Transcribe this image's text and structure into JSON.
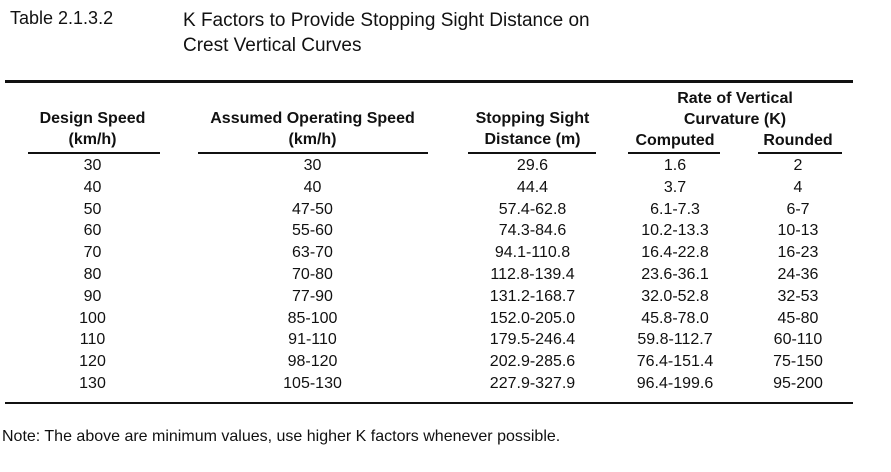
{
  "table_number": "Table 2.1.3.2",
  "title_line1": "K Factors to Provide Stopping Sight Distance on",
  "title_line2": "Crest Vertical Curves",
  "headers": {
    "design_speed": [
      "Design Speed",
      "(km/h)"
    ],
    "operating_speed": [
      "Assumed Operating Speed",
      "(km/h)"
    ],
    "ssd": [
      "Stopping Sight",
      "Distance (m)"
    ],
    "rate": [
      "Rate of Vertical",
      "Curvature (K)"
    ],
    "computed": "Computed",
    "rounded": "Rounded"
  },
  "rows": [
    [
      "30",
      "30",
      "29.6",
      "1.6",
      "2"
    ],
    [
      "40",
      "40",
      "44.4",
      "3.7",
      "4"
    ],
    [
      "50",
      "47-50",
      "57.4-62.8",
      "6.1-7.3",
      "6-7"
    ],
    [
      "60",
      "55-60",
      "74.3-84.6",
      "10.2-13.3",
      "10-13"
    ],
    [
      "70",
      "63-70",
      "94.1-110.8",
      "16.4-22.8",
      "16-23"
    ],
    [
      "80",
      "70-80",
      "112.8-139.4",
      "23.6-36.1",
      "24-36"
    ],
    [
      "90",
      "77-90",
      "131.2-168.7",
      "32.0-52.8",
      "32-53"
    ],
    [
      "100",
      "85-100",
      "152.0-205.0",
      "45.8-78.0",
      "45-80"
    ],
    [
      "110",
      "91-110",
      "179.5-246.4",
      "59.8-112.7",
      "60-110"
    ],
    [
      "120",
      "98-120",
      "202.9-285.6",
      "76.4-151.4",
      "75-150"
    ],
    [
      "130",
      "105-130",
      "227.9-327.9",
      "96.4-199.6",
      "95-200"
    ]
  ],
  "note": "Note:  The above are minimum values, use higher K factors whenever possible."
}
